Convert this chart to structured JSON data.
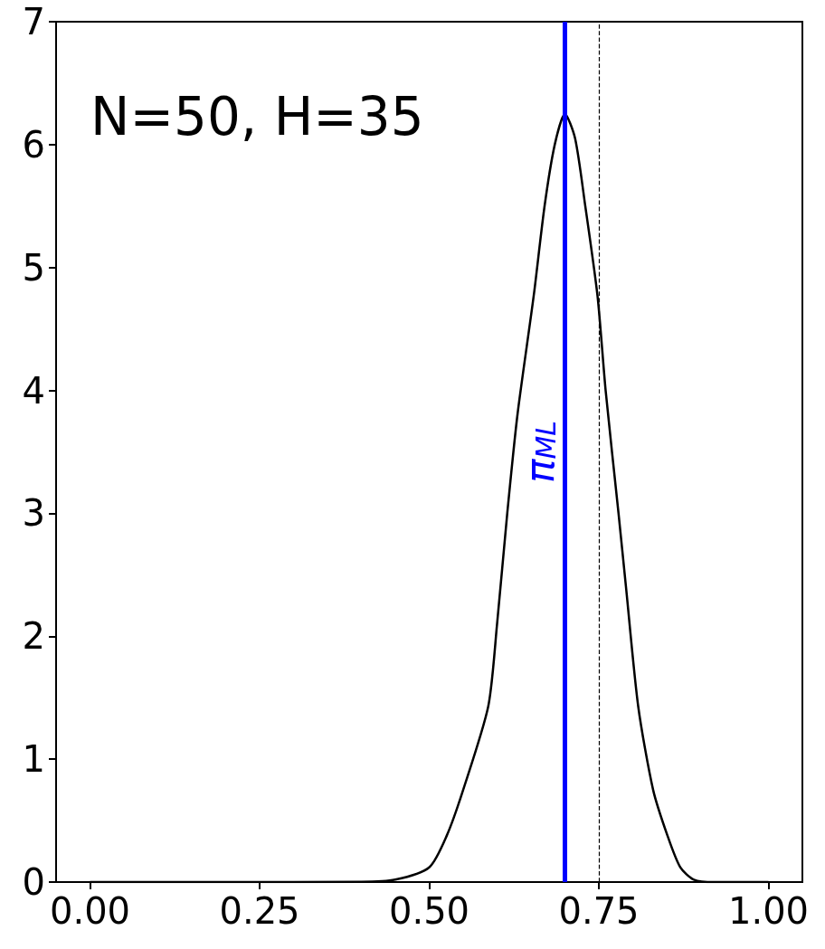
{
  "chart_data": {
    "type": "line",
    "x": [
      0.0,
      0.2,
      0.4,
      0.45,
      0.5,
      0.526,
      0.55,
      0.587,
      0.6,
      0.615,
      0.63,
      0.654,
      0.67,
      0.685,
      0.7,
      0.715,
      0.73,
      0.748,
      0.76,
      0.779,
      0.79,
      0.808,
      0.83,
      0.851,
      0.87,
      0.89,
      0.92,
      1.0
    ],
    "series": [
      {
        "color": "#000000",
        "values": [
          0,
          0,
          0.002,
          0.02,
          0.12,
          0.38,
          0.75,
          1.43,
          2.1,
          3.0,
          3.8,
          4.77,
          5.5,
          6.0,
          6.25,
          6.05,
          5.5,
          4.77,
          4.0,
          3.0,
          2.4,
          1.43,
          0.75,
          0.38,
          0.12,
          0.02,
          0,
          0
        ]
      }
    ],
    "xlim": [
      -0.05,
      1.05
    ],
    "xticks": [
      {
        "value": 0,
        "label": "0.00"
      },
      {
        "value": 0.25,
        "label": "0.25"
      },
      {
        "value": 0.5,
        "label": "0.50"
      },
      {
        "value": 0.75,
        "label": "0.75"
      },
      {
        "value": 1,
        "label": "1.00"
      }
    ],
    "ylim": [
      0,
      7
    ],
    "yticks": [
      0,
      1,
      2,
      3,
      4,
      5,
      6,
      7
    ],
    "ref_lines": [
      {
        "axis": "x",
        "value": 0.7,
        "label": "π$_{ML}$",
        "color": "#0000ff",
        "line_style": "solid"
      },
      {
        "axis": "x",
        "value": 0.75,
        "label": null,
        "color": "#000000",
        "line_style": "dashed"
      }
    ],
    "annotations": [
      "N=50, H=35"
    ],
    "grid": false,
    "marker": "none",
    "line_style": "solid"
  }
}
